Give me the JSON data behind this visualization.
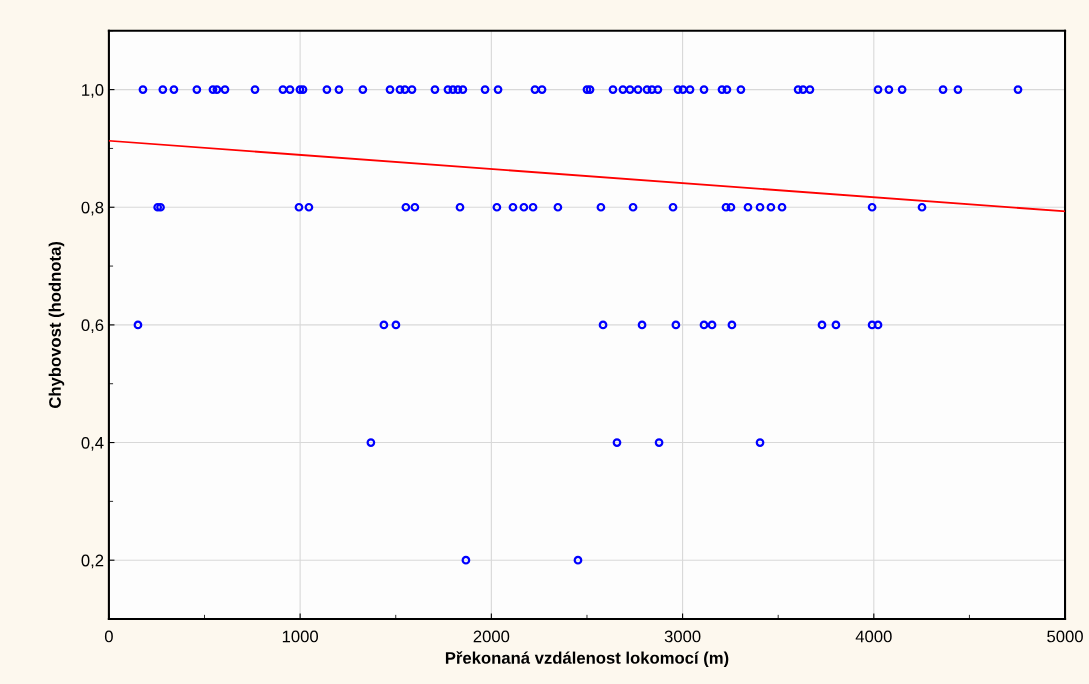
{
  "chart_data": {
    "type": "scatter",
    "xlabel": "Překonaná vzdálenost lokomocí (m)",
    "ylabel": "Chybovost (hodnota)",
    "xlim": [
      0,
      5000
    ],
    "xticks": [
      0,
      1000,
      2000,
      3000,
      4000,
      5000
    ],
    "ylim": [
      0.1,
      1.1
    ],
    "yticks": [
      {
        "value": 0.2,
        "label": "0,2"
      },
      {
        "value": 0.4,
        "label": "0,4"
      },
      {
        "value": 0.6,
        "label": "0,6"
      },
      {
        "value": 0.8,
        "label": "0,8"
      },
      {
        "value": 1.0,
        "label": "1,0"
      }
    ],
    "grid": true,
    "marker": "circle",
    "series": [
      {
        "color": "#0000ff",
        "x": [
          178,
          282,
          340,
          460,
          544,
          565,
          607,
          764,
          910,
          947,
          999,
          1015,
          1140,
          1203,
          1328,
          1470,
          1522,
          1548,
          1585,
          1705,
          1773,
          1799,
          1825,
          1851,
          1967,
          2035,
          2228,
          2265,
          2500,
          2516,
          2636,
          2688,
          2725,
          2767,
          2814,
          2840,
          2871,
          2976,
          3002,
          3039,
          3112,
          3206,
          3232,
          3305,
          3604,
          3630,
          3666,
          4022,
          4079,
          4148,
          4362,
          4440,
          4754
        ],
        "values": [
          1,
          1,
          1,
          1,
          1,
          1,
          1,
          1,
          1,
          1,
          1,
          1,
          1,
          1,
          1,
          1,
          1,
          1,
          1,
          1,
          1,
          1,
          1,
          1,
          1,
          1,
          1,
          1,
          1,
          1,
          1,
          1,
          1,
          1,
          1,
          1,
          1,
          1,
          1,
          1,
          1,
          1,
          1,
          1,
          1,
          1,
          1,
          1,
          1,
          1,
          1,
          1,
          1
        ]
      },
      {
        "color": "#0000ff",
        "x": [
          255,
          270,
          994,
          1046,
          1553,
          1600,
          1836,
          2029,
          2113,
          2170,
          2218,
          2348,
          2573,
          2741,
          2950,
          3227,
          3253,
          3342,
          3405,
          3462,
          3520,
          3991,
          4252
        ],
        "values": [
          0.8,
          0.8,
          0.8,
          0.8,
          0.8,
          0.8,
          0.8,
          0.8,
          0.8,
          0.8,
          0.8,
          0.8,
          0.8,
          0.8,
          0.8,
          0.8,
          0.8,
          0.8,
          0.8,
          0.8,
          0.8,
          0.8,
          0.8
        ]
      },
      {
        "color": "#0000ff",
        "x": [
          152,
          1438,
          1501,
          2584,
          2788,
          2965,
          3112,
          3154,
          3258,
          3729,
          3802,
          3991,
          4022
        ],
        "values": [
          0.6,
          0.6,
          0.6,
          0.6,
          0.6,
          0.6,
          0.6,
          0.6,
          0.6,
          0.6,
          0.6,
          0.6,
          0.6
        ]
      },
      {
        "color": "#0000ff",
        "x": [
          1370,
          2657,
          2877,
          3405
        ],
        "values": [
          0.4,
          0.4,
          0.4,
          0.4
        ]
      },
      {
        "color": "#0000ff",
        "x": [
          1867,
          2453
        ],
        "values": [
          0.2,
          0.2
        ]
      },
      {
        "type": "line",
        "color": "#ff0000",
        "marker": "none",
        "x": [
          0,
          5000
        ],
        "values": [
          0.913,
          0.793
        ]
      }
    ]
  }
}
